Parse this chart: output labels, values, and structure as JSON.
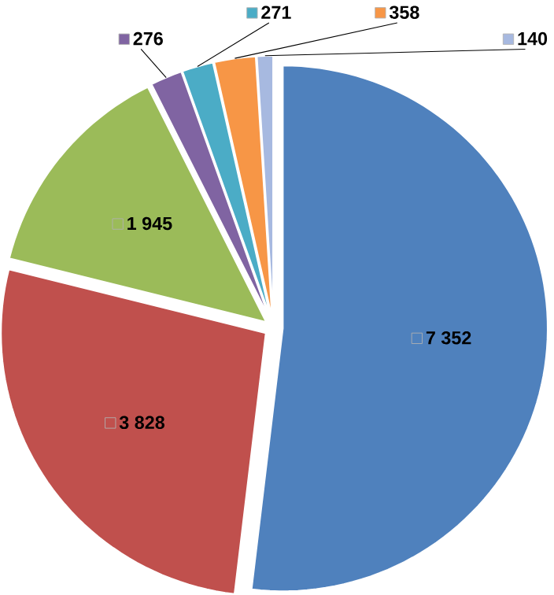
{
  "chart_data": {
    "type": "pie",
    "categories": [
      null,
      null,
      null,
      null,
      null,
      null,
      null
    ],
    "values": [
      7352,
      3828,
      1945,
      276,
      271,
      358,
      140
    ],
    "colors": [
      "#4f81bd",
      "#c0504d",
      "#9bbb59",
      "#8064a2",
      "#4bacc6",
      "#f79646",
      "#a7b9e0"
    ],
    "value_labels": [
      "7 352",
      "3 828",
      "1 945",
      "276",
      "271",
      "358",
      "140"
    ]
  }
}
